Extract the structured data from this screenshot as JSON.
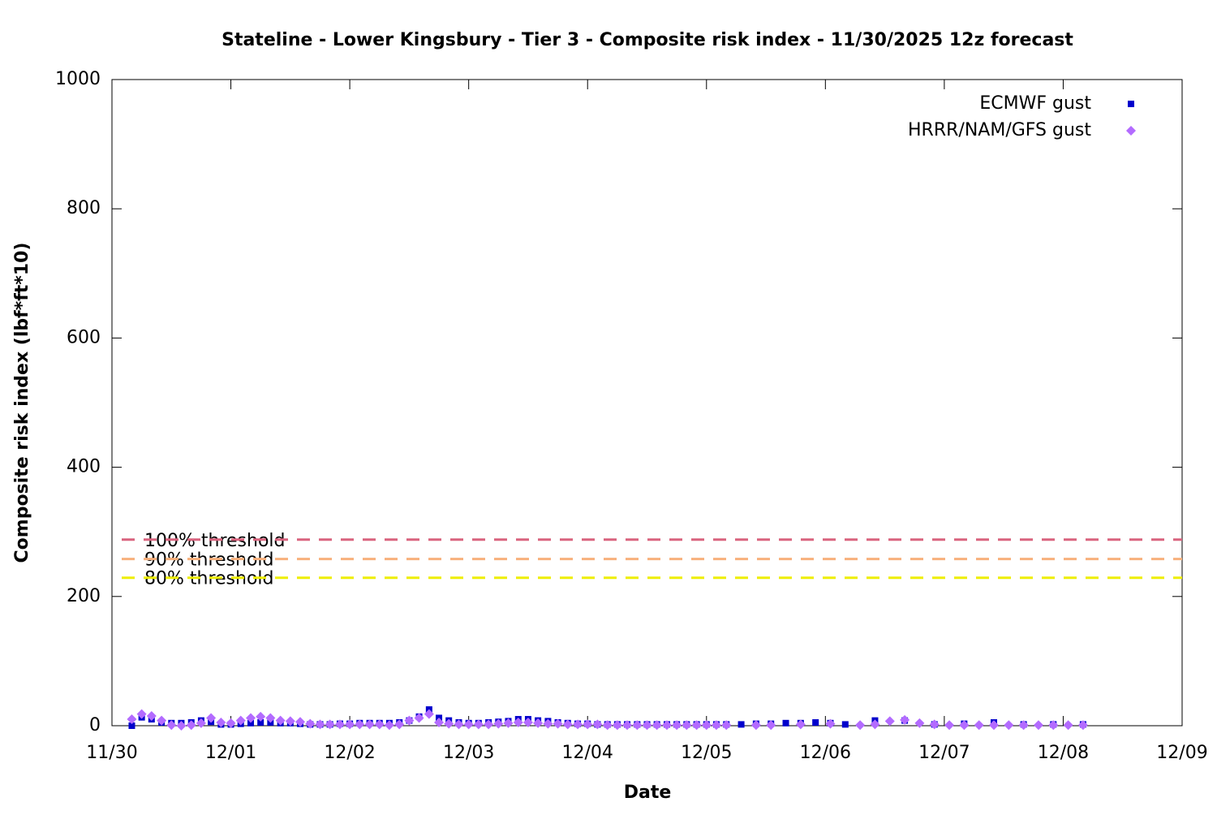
{
  "chart_data": {
    "type": "scatter",
    "title": "Stateline - Lower Kingsbury - Tier 3 - Composite risk index - 11/30/2025 12z forecast",
    "x_label": "Date",
    "y_label": "Composite risk index (lbf*ft*10)",
    "xlim": [
      0,
      9
    ],
    "xticks": [
      {
        "value": 0,
        "label": "11/30"
      },
      {
        "value": 1,
        "label": "12/01"
      },
      {
        "value": 2,
        "label": "12/02"
      },
      {
        "value": 3,
        "label": "12/03"
      },
      {
        "value": 4,
        "label": "12/04"
      },
      {
        "value": 5,
        "label": "12/05"
      },
      {
        "value": 6,
        "label": "12/06"
      },
      {
        "value": 7,
        "label": "12/07"
      },
      {
        "value": 8,
        "label": "12/08"
      },
      {
        "value": 9,
        "label": "12/09"
      }
    ],
    "ylim": [
      0,
      1000
    ],
    "yticks": [
      0,
      200,
      400,
      600,
      800,
      1000
    ],
    "legend": "top-right",
    "thresholds": [
      {
        "label": "100% threshold",
        "value": 288,
        "color": "#d9637e"
      },
      {
        "label": "90% threshold",
        "value": 258,
        "color": "#f8b07c"
      },
      {
        "label": "80% threshold",
        "value": 229,
        "color": "#eeee00"
      }
    ],
    "series": [
      {
        "name": "ECMWF gust",
        "color": "#0000cc",
        "marker": "square",
        "x": [
          0.167,
          0.25,
          0.333,
          0.417,
          0.5,
          0.583,
          0.667,
          0.75,
          0.833,
          0.917,
          1.0,
          1.083,
          1.167,
          1.25,
          1.333,
          1.417,
          1.5,
          1.583,
          1.667,
          1.75,
          1.833,
          1.917,
          2.0,
          2.083,
          2.167,
          2.25,
          2.333,
          2.417,
          2.5,
          2.583,
          2.667,
          2.75,
          2.833,
          2.917,
          3.0,
          3.083,
          3.167,
          3.25,
          3.333,
          3.417,
          3.5,
          3.583,
          3.667,
          3.75,
          3.833,
          3.917,
          4.0,
          4.083,
          4.167,
          4.25,
          4.333,
          4.417,
          4.5,
          4.583,
          4.667,
          4.75,
          4.833,
          4.917,
          5.0,
          5.083,
          5.167,
          5.292,
          5.417,
          5.542,
          5.667,
          5.792,
          5.917,
          6.042,
          6.167,
          6.417,
          6.667,
          6.917,
          7.167,
          7.417,
          7.667,
          7.917,
          8.167
        ],
        "values": [
          0,
          13,
          10,
          5,
          4,
          4,
          5,
          8,
          6,
          2,
          2,
          3,
          4,
          5,
          5,
          4,
          4,
          3,
          2,
          2,
          2,
          3,
          3,
          4,
          4,
          4,
          4,
          5,
          8,
          14,
          25,
          12,
          8,
          5,
          4,
          4,
          5,
          6,
          7,
          10,
          10,
          8,
          7,
          5,
          4,
          3,
          3,
          2,
          2,
          2,
          2,
          2,
          2,
          2,
          2,
          2,
          2,
          2,
          2,
          2,
          2,
          2,
          3,
          3,
          4,
          4,
          5,
          4,
          2,
          8,
          8,
          2,
          3,
          5,
          2,
          2,
          2
        ]
      },
      {
        "name": "HRRR/NAM/GFS gust",
        "color": "#b36bff",
        "marker": "diamond",
        "x": [
          0.167,
          0.25,
          0.333,
          0.417,
          0.5,
          0.583,
          0.667,
          0.75,
          0.833,
          0.917,
          1.0,
          1.083,
          1.167,
          1.25,
          1.333,
          1.417,
          1.5,
          1.583,
          1.667,
          1.75,
          1.833,
          1.917,
          2.0,
          2.083,
          2.167,
          2.25,
          2.333,
          2.417,
          2.5,
          2.583,
          2.667,
          2.75,
          2.833,
          2.917,
          3.0,
          3.083,
          3.167,
          3.25,
          3.333,
          3.417,
          3.5,
          3.583,
          3.667,
          3.75,
          3.833,
          3.917,
          4.0,
          4.083,
          4.167,
          4.25,
          4.333,
          4.417,
          4.5,
          4.583,
          4.667,
          4.75,
          4.833,
          4.917,
          5.0,
          5.083,
          5.167,
          5.417,
          5.542,
          5.792,
          6.042,
          6.292,
          6.417,
          6.542,
          6.667,
          6.792,
          6.917,
          7.042,
          7.167,
          7.292,
          7.417,
          7.542,
          7.667,
          7.792,
          7.917,
          8.042,
          8.167
        ],
        "values": [
          10,
          18,
          15,
          8,
          1,
          0,
          1,
          4,
          12,
          5,
          4,
          8,
          12,
          14,
          12,
          8,
          7,
          6,
          3,
          2,
          2,
          2,
          2,
          2,
          2,
          2,
          1,
          2,
          8,
          12,
          18,
          5,
          3,
          2,
          2,
          2,
          2,
          3,
          4,
          5,
          5,
          4,
          3,
          3,
          2,
          2,
          2,
          2,
          1,
          1,
          1,
          1,
          1,
          1,
          1,
          1,
          1,
          1,
          1,
          1,
          1,
          1,
          1,
          2,
          3,
          1,
          2,
          7,
          9,
          4,
          2,
          1,
          1,
          1,
          1,
          1,
          1,
          1,
          1,
          1,
          1
        ]
      }
    ]
  }
}
